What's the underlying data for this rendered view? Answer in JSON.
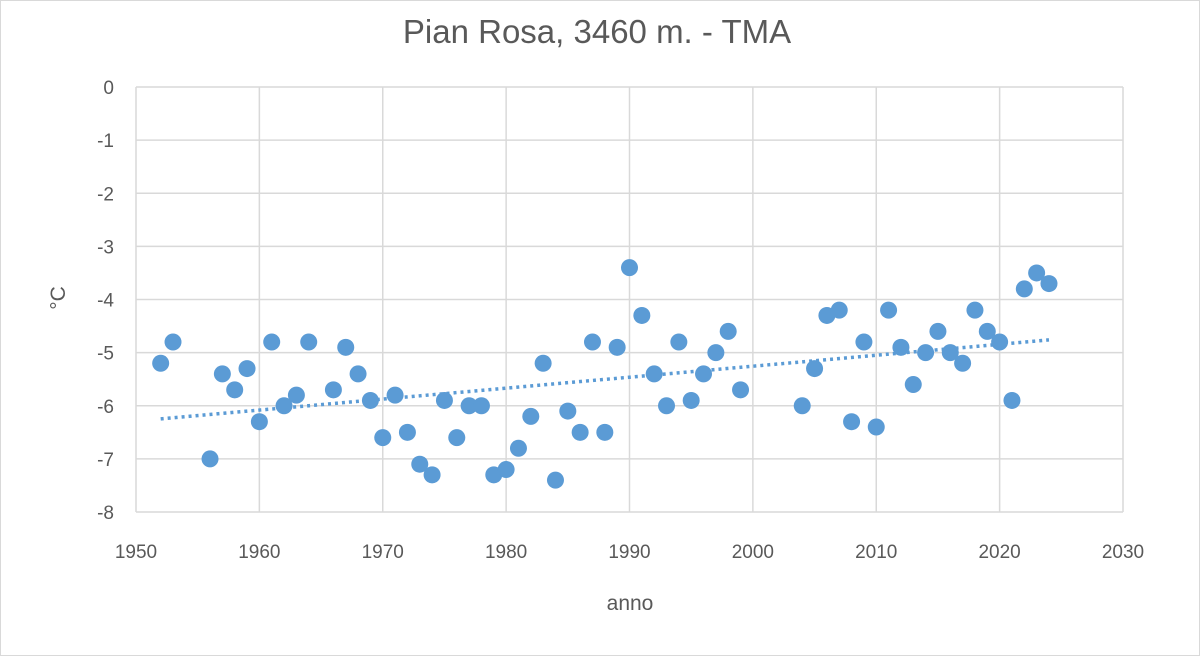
{
  "chart_data": {
    "type": "scatter",
    "title": "Pian Rosa, 3460 m. - TMA",
    "xlabel": "anno",
    "ylabel": "°C",
    "xlim": [
      1950,
      2030
    ],
    "ylim": [
      -8,
      0
    ],
    "xticks": [
      "1950",
      "1960",
      "1970",
      "1980",
      "1990",
      "2000",
      "2010",
      "2020",
      "2030"
    ],
    "yticks": [
      "0",
      "-1",
      "-2",
      "-3",
      "-4",
      "-5",
      "-6",
      "-7",
      "-8"
    ],
    "grid": true,
    "legend": "none",
    "series": [
      {
        "color": "#5b9bd5",
        "points": [
          [
            1952,
            -5.2
          ],
          [
            1953,
            -4.8
          ],
          [
            1956,
            -7.0
          ],
          [
            1957,
            -5.4
          ],
          [
            1958,
            -5.7
          ],
          [
            1959,
            -5.3
          ],
          [
            1960,
            -6.3
          ],
          [
            1961,
            -4.8
          ],
          [
            1962,
            -6.0
          ],
          [
            1963,
            -5.8
          ],
          [
            1964,
            -4.8
          ],
          [
            1966,
            -5.7
          ],
          [
            1967,
            -4.9
          ],
          [
            1968,
            -5.4
          ],
          [
            1969,
            -5.9
          ],
          [
            1970,
            -6.6
          ],
          [
            1971,
            -5.8
          ],
          [
            1972,
            -6.5
          ],
          [
            1973,
            -7.1
          ],
          [
            1974,
            -7.3
          ],
          [
            1975,
            -5.9
          ],
          [
            1976,
            -6.6
          ],
          [
            1977,
            -6.0
          ],
          [
            1978,
            -6.0
          ],
          [
            1979,
            -7.3
          ],
          [
            1980,
            -7.2
          ],
          [
            1981,
            -6.8
          ],
          [
            1982,
            -6.2
          ],
          [
            1983,
            -5.2
          ],
          [
            1984,
            -7.4
          ],
          [
            1985,
            -6.1
          ],
          [
            1986,
            -6.5
          ],
          [
            1987,
            -4.8
          ],
          [
            1988,
            -6.5
          ],
          [
            1989,
            -4.9
          ],
          [
            1990,
            -3.4
          ],
          [
            1991,
            -4.3
          ],
          [
            1992,
            -5.4
          ],
          [
            1993,
            -6.0
          ],
          [
            1994,
            -4.8
          ],
          [
            1995,
            -5.9
          ],
          [
            1996,
            -5.4
          ],
          [
            1997,
            -5.0
          ],
          [
            1998,
            -4.6
          ],
          [
            1999,
            -5.7
          ],
          [
            2004,
            -6.0
          ],
          [
            2005,
            -5.3
          ],
          [
            2006,
            -4.3
          ],
          [
            2007,
            -4.2
          ],
          [
            2008,
            -6.3
          ],
          [
            2009,
            -4.8
          ],
          [
            2010,
            -6.4
          ],
          [
            2011,
            -4.2
          ],
          [
            2012,
            -4.9
          ],
          [
            2013,
            -5.6
          ],
          [
            2014,
            -5.0
          ],
          [
            2015,
            -4.6
          ],
          [
            2016,
            -5.0
          ],
          [
            2017,
            -5.2
          ],
          [
            2018,
            -4.2
          ],
          [
            2019,
            -4.6
          ],
          [
            2020,
            -4.8
          ],
          [
            2021,
            -5.9
          ],
          [
            2022,
            -3.8
          ],
          [
            2023,
            -3.5
          ],
          [
            2024,
            -3.7
          ]
        ]
      }
    ],
    "trendline": {
      "type": "linear",
      "style": "dotted",
      "color": "#5b9bd5",
      "x_range": [
        1952,
        2024
      ]
    }
  }
}
